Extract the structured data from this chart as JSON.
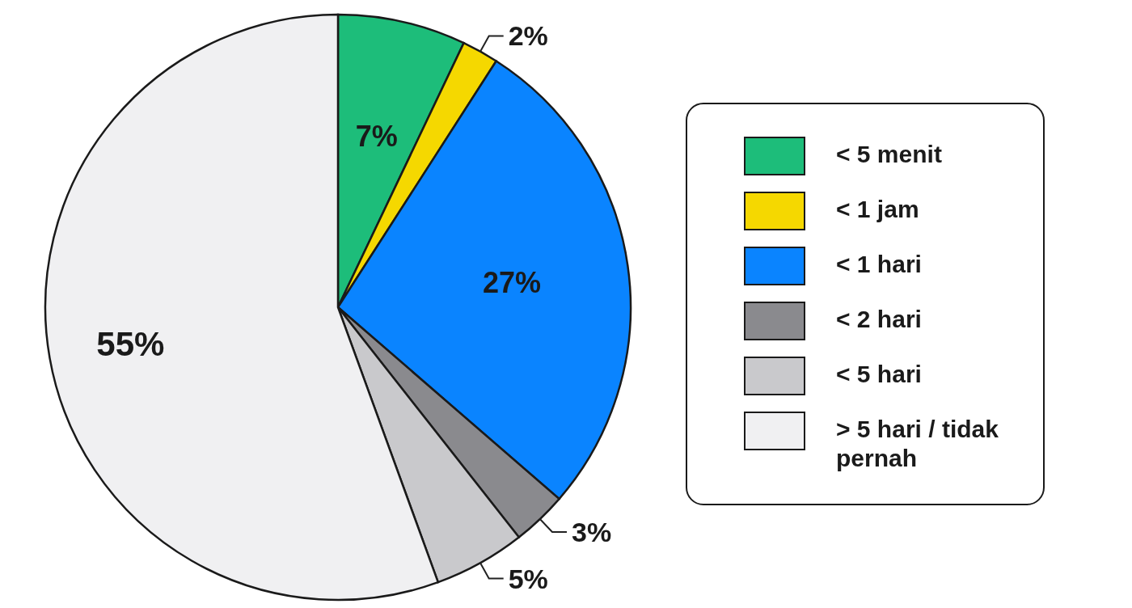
{
  "chart_data": {
    "type": "pie",
    "categories": [
      "< 5 menit",
      "< 1 jam",
      "< 1 hari",
      "< 2 hari",
      "< 5 hari",
      "> 5 hari / tidak pernah"
    ],
    "values": [
      7,
      2,
      27,
      3,
      5,
      55
    ],
    "colors": [
      "#1dbd7a",
      "#f5d800",
      "#0a84ff",
      "#8a8a8e",
      "#c9c9cc",
      "#f0f0f2"
    ],
    "value_labels": [
      "7%",
      "2%",
      "27%",
      "3%",
      "5%",
      "55%"
    ],
    "legend": "right"
  }
}
